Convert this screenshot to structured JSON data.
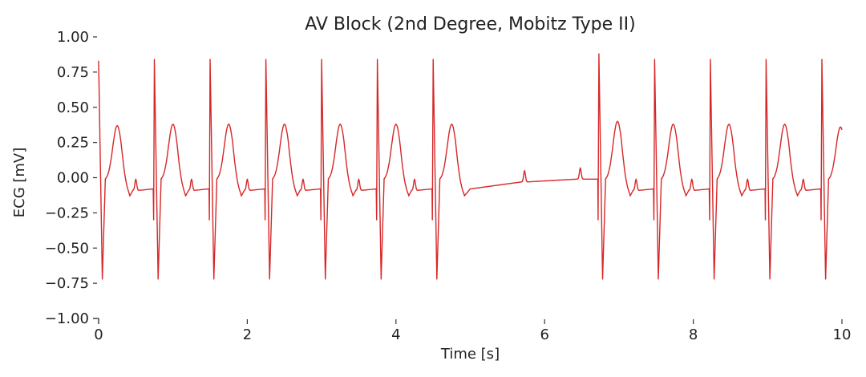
{
  "chart_data": {
    "type": "line",
    "title": "AV Block (2nd Degree, Mobitz Type II)",
    "xlabel": "Time [s]",
    "ylabel": "ECG [mV]",
    "xlim": [
      0,
      10
    ],
    "ylim": [
      -1.0,
      1.0
    ],
    "x_ticks": [
      0,
      2,
      4,
      6,
      8,
      10
    ],
    "x_tick_labels": [
      "0",
      "2",
      "4",
      "6",
      "8",
      "10"
    ],
    "y_ticks": [
      1.0,
      0.75,
      0.5,
      0.25,
      0.0,
      -0.25,
      -0.5,
      -0.75,
      -1.0
    ],
    "y_tick_labels": [
      "1.00",
      "0.75",
      "0.50",
      "0.25",
      "0.00",
      "−0.25",
      "−0.50",
      "−0.75",
      "−1.00"
    ],
    "grid": false,
    "legend": "none",
    "series": [
      {
        "color": "#d62728",
        "beats": [
          {
            "p_time": 0.5,
            "r_time": 0.75,
            "r_peak": 0.84,
            "s_trough": -0.72,
            "t_peak": 0.38
          },
          {
            "p_time": 1.25,
            "r_time": 1.5,
            "r_peak": 0.84,
            "s_trough": -0.72,
            "t_peak": 0.38
          },
          {
            "p_time": 2.0,
            "r_time": 2.25,
            "r_peak": 0.84,
            "s_trough": -0.72,
            "t_peak": 0.38
          },
          {
            "p_time": 2.75,
            "r_time": 3.0,
            "r_peak": 0.84,
            "s_trough": -0.72,
            "t_peak": 0.38
          },
          {
            "p_time": 3.5,
            "r_time": 3.75,
            "r_peak": 0.84,
            "s_trough": -0.72,
            "t_peak": 0.38
          },
          {
            "p_time": 4.25,
            "r_time": 4.5,
            "r_peak": 0.84,
            "s_trough": -0.72,
            "t_peak": 0.38
          },
          {
            "p_time": 6.48,
            "r_time": 6.73,
            "r_peak": 0.88,
            "s_trough": -0.72,
            "t_peak": 0.4
          },
          {
            "p_time": 7.23,
            "r_time": 7.48,
            "r_peak": 0.84,
            "s_trough": -0.72,
            "t_peak": 0.38
          },
          {
            "p_time": 7.98,
            "r_time": 8.23,
            "r_peak": 0.84,
            "s_trough": -0.72,
            "t_peak": 0.38
          },
          {
            "p_time": 8.73,
            "r_time": 8.98,
            "r_peak": 0.84,
            "s_trough": -0.72,
            "t_peak": 0.38
          },
          {
            "p_time": 9.48,
            "r_time": 9.73,
            "r_peak": 0.84,
            "s_trough": -0.72,
            "t_peak": 0.36
          }
        ],
        "start_beat": {
          "r_time": 0.0,
          "r_peak": 0.83,
          "s_trough": -0.72,
          "t_peak": 0.37
        },
        "blocked_p_waves": [
          5.73
        ],
        "baseline_values": [
          {
            "x": 4.6,
            "y": -0.12
          },
          {
            "x": 5.0,
            "y": -0.08
          },
          {
            "x": 5.5,
            "y": -0.05
          },
          {
            "x": 6.0,
            "y": -0.03
          },
          {
            "x": 6.45,
            "y": -0.01
          }
        ]
      }
    ]
  }
}
